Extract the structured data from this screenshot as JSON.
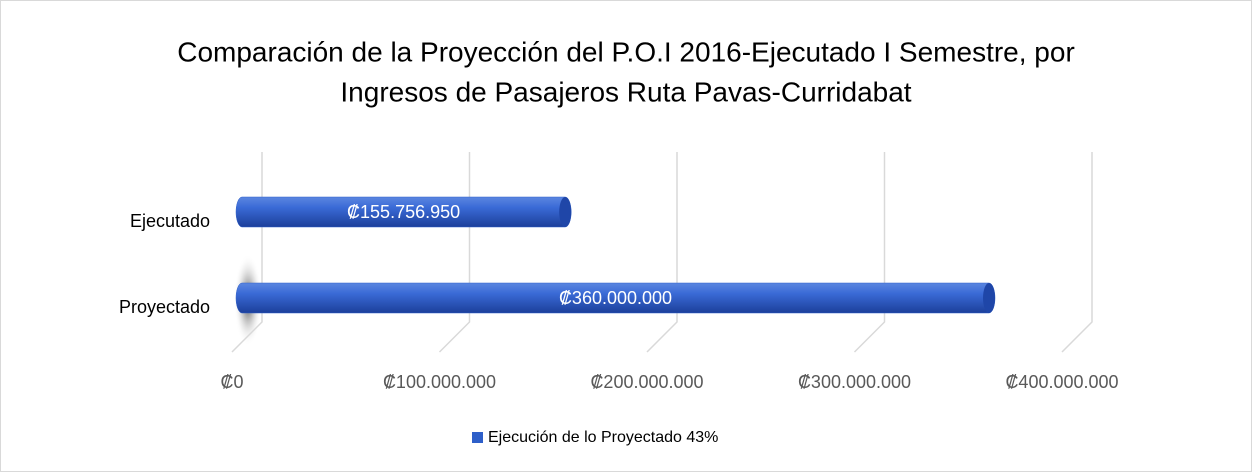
{
  "chart_data": {
    "type": "bar",
    "orientation": "horizontal",
    "title": [
      "Comparación de la Proyección del P.O.I 2016-Ejecutado I Semestre, por",
      "Ingresos de Pasajeros  Ruta Pavas-Curridabat"
    ],
    "categories": [
      "Ejecutado",
      "Proyectado"
    ],
    "series": [
      {
        "name": "Ejecución de lo Proyectado 43%",
        "color": "#2e5fc9",
        "values": [
          155756950,
          360000000
        ],
        "value_labels": [
          "₡155.756.950",
          "₡360.000.000"
        ]
      }
    ],
    "xlim": [
      0,
      400000000
    ],
    "xticks": [
      {
        "value": 0,
        "label": "₡0"
      },
      {
        "value": 100000000,
        "label": "₡100.000.000"
      },
      {
        "value": 200000000,
        "label": "₡200.000.000"
      },
      {
        "value": 300000000,
        "label": "₡300.000.000"
      },
      {
        "value": 400000000,
        "label": "₡400.000.000"
      }
    ],
    "grid": true,
    "legend": "bottom"
  }
}
